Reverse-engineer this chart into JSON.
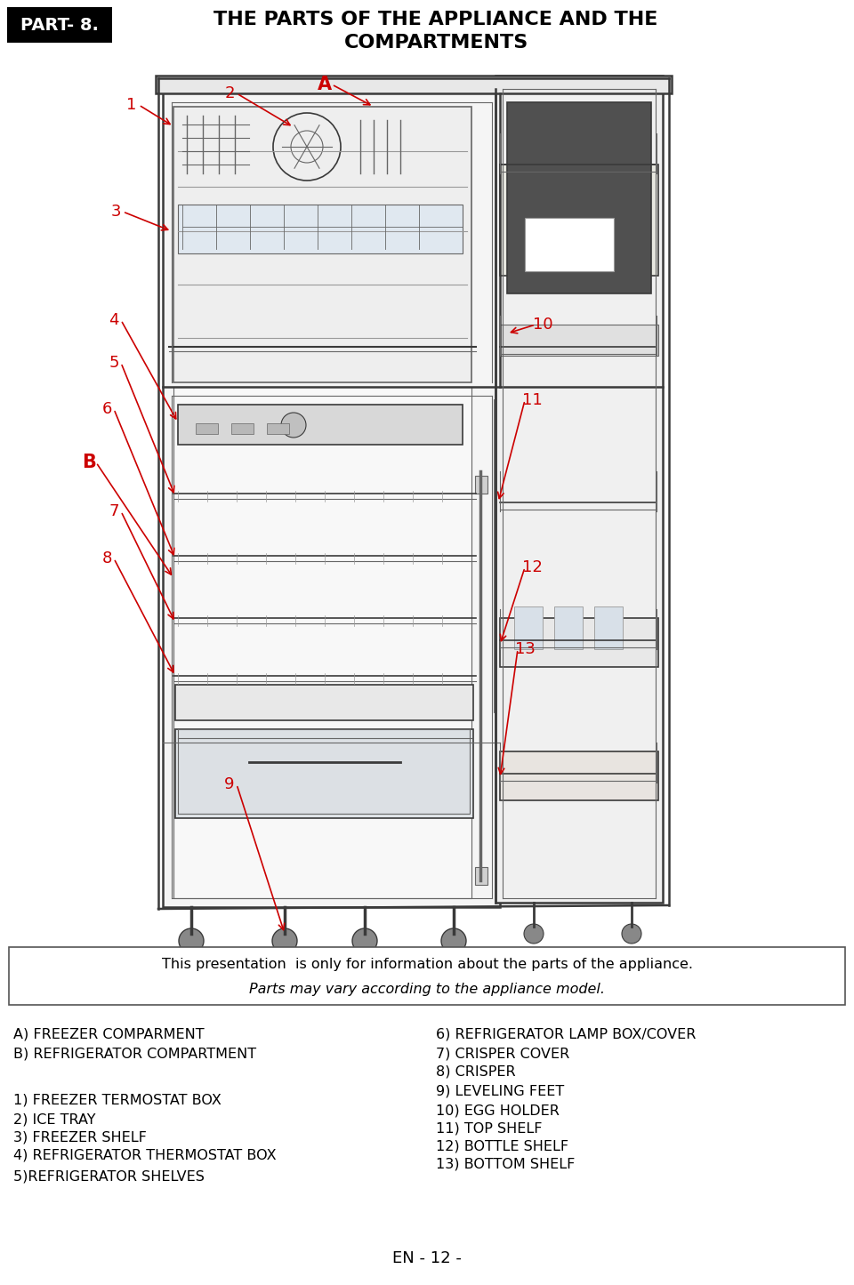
{
  "title_line1": "THE PARTS OF THE APPLIANCE AND THE",
  "title_line2": "COMPARTMENTS",
  "part_label": "PART- 8.",
  "bg_color": "#ffffff",
  "title_color": "#000000",
  "part_bg": "#000000",
  "part_text_color": "#ffffff",
  "label_color": "#cc0000",
  "footer_text_line1": "This presentation  is only for information about the parts of the appliance.",
  "footer_text_line2": "Parts may vary according to the appliance model.",
  "page_label": "EN - 12 -",
  "left_col_lines": [
    "A) FREEZER COMPARMENT",
    "B) REFRIGERATOR COMPARTMENT",
    "",
    "1) FREEZER TERMOSTAT BOX",
    "2) ICE TRAY",
    "3) FREEZER SHELF",
    "4) REFRIGERATOR THERMOSTAT BOX",
    "5)REFRIGERATOR SHELVES"
  ],
  "right_col_lines": [
    "6) REFRIGERATOR LAMP BOX/COVER",
    "7) CRISPER COVER",
    "8) CRISPER",
    "9) LEVELING FEET",
    "10) EGG HOLDER",
    "11) TOP SHELF",
    "12) BOTTLE SHELF",
    "13) BOTTOM SHELF"
  ]
}
